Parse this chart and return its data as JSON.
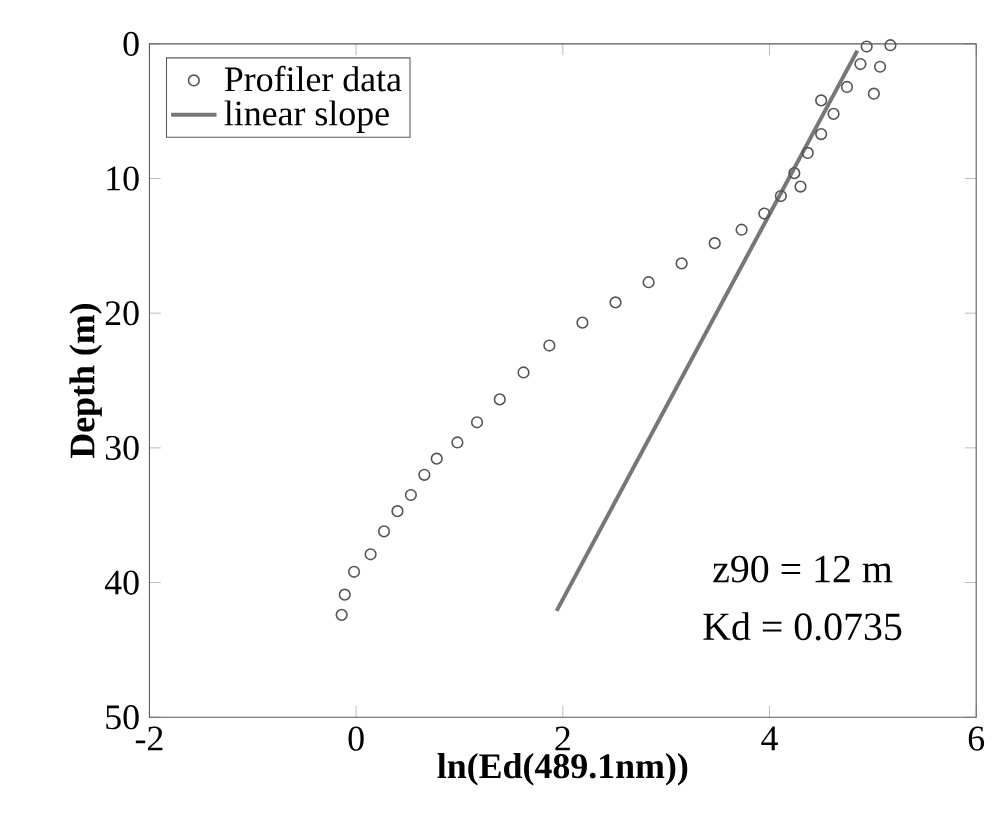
{
  "chart_data": {
    "type": "scatter",
    "xlabel": "ln(Ed(489.1nm))",
    "ylabel": "Depth (m)",
    "xlim": [
      -2,
      6
    ],
    "ylim": [
      50,
      0
    ],
    "xticks": [
      -2,
      0,
      2,
      4,
      6
    ],
    "yticks": [
      0,
      10,
      20,
      30,
      40,
      50
    ],
    "legend": "top left",
    "series": [
      {
        "name": "Profiler data",
        "marker": "circle",
        "color": "#555555",
        "x": [
          -0.14,
          -0.11,
          -0.02,
          0.14,
          0.27,
          0.4,
          0.53,
          0.66,
          0.78,
          0.98,
          1.17,
          1.39,
          1.62,
          1.87,
          2.19,
          2.51,
          2.83,
          3.15,
          3.47,
          3.73,
          3.95,
          4.11,
          4.3,
          4.24,
          4.37,
          4.5,
          4.5,
          4.62,
          4.75,
          4.88,
          4.94,
          5.01,
          5.07,
          5.17
        ],
        "values": [
          42.4,
          40.9,
          39.2,
          37.9,
          36.2,
          34.7,
          33.5,
          32.0,
          30.8,
          29.6,
          28.1,
          26.4,
          24.4,
          22.4,
          20.7,
          19.2,
          17.7,
          16.3,
          14.8,
          13.8,
          12.6,
          11.3,
          10.6,
          9.6,
          8.1,
          6.7,
          4.2,
          5.2,
          3.2,
          1.5,
          0.2,
          3.7,
          1.7,
          0.1
        ]
      },
      {
        "name": "linear slope",
        "type": "line",
        "marker": "none",
        "color": "#777777",
        "x": [
          1.94,
          4.85
        ],
        "values": [
          42.1,
          0.5
        ]
      }
    ],
    "annotations": [
      "z90 = 12 m",
      "Kd = 0.0735"
    ]
  }
}
